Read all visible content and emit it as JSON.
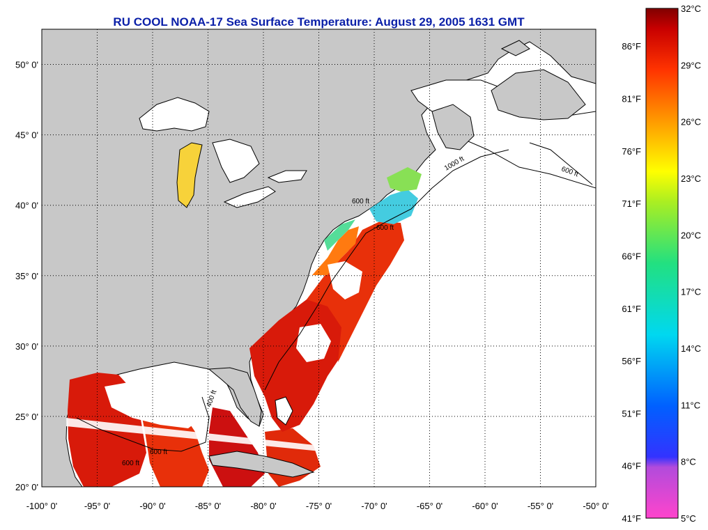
{
  "title": "RU COOL  NOAA-17  Sea Surface Temperature:  August 29, 2005 1631 GMT",
  "map": {
    "lon_range": [
      -100,
      -50
    ],
    "lat_range": [
      20,
      52.5
    ],
    "lon_ticks": [
      "-100° 0'",
      "-95° 0'",
      "-90° 0'",
      "-85° 0'",
      "-80° 0'",
      "-75° 0'",
      "-70° 0'",
      "-65° 0'",
      "-60° 0'",
      "-55° 0'",
      "-50° 0'"
    ],
    "lat_ticks": [
      "20° 0'",
      "25° 0'",
      "30° 0'",
      "35° 0'",
      "40° 0'",
      "45° 0'",
      "50° 0'"
    ],
    "contour_labels": [
      "600 ft",
      "600 ft",
      "400 ft",
      "600 ft",
      "600 ft",
      "1000 ft",
      "600 ft"
    ],
    "land_color": "#c8c8c8",
    "no_data_color": "#ffffff",
    "grid": "dotted"
  },
  "colorbar": {
    "celsius_labels": [
      "32°C",
      "29°C",
      "26°C",
      "23°C",
      "20°C",
      "17°C",
      "14°C",
      "11°C",
      "8°C",
      "5°C"
    ],
    "fahrenheit_labels": [
      "86°F",
      "81°F",
      "76°F",
      "71°F",
      "66°F",
      "61°F",
      "56°F",
      "51°F",
      "46°F",
      "41°F"
    ],
    "range_c": [
      5,
      32
    ],
    "colors": [
      "#ff44cc",
      "#8a2be2",
      "#0000ff",
      "#00bfff",
      "#00e5d0",
      "#44dd44",
      "#ffff00",
      "#ff9900",
      "#ff3300",
      "#cc0000",
      "#7a0000"
    ]
  }
}
